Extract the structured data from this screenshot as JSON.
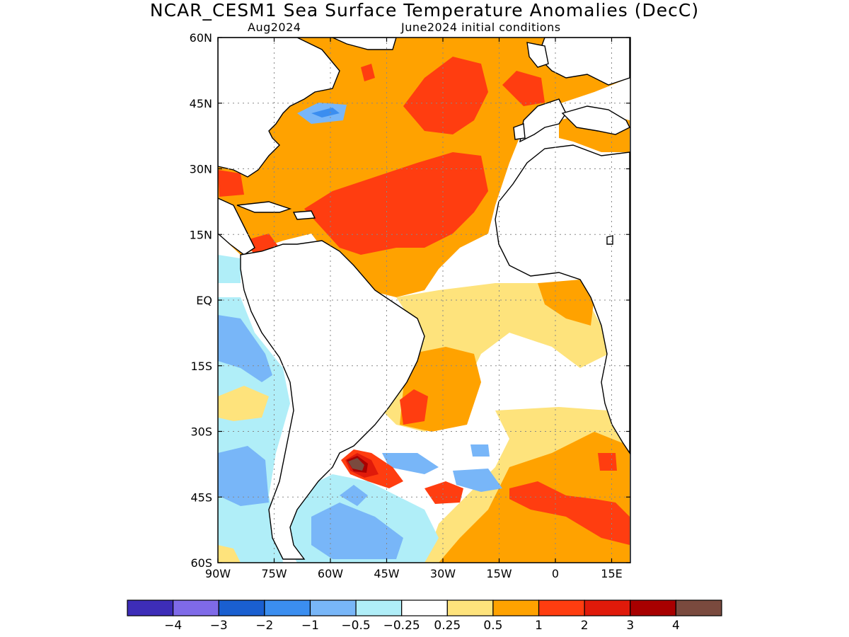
{
  "title": "NCAR_CESM1 Sea Surface Temperature Anomalies (DecC)",
  "subtitle_left": "Aug2024",
  "subtitle_right": "June2024 initial conditions",
  "map": {
    "lon_range": [
      -90,
      20
    ],
    "lat_range": [
      -60,
      60
    ],
    "lat_ticks": [
      {
        "lat": 60,
        "label": "60N"
      },
      {
        "lat": 45,
        "label": "45N"
      },
      {
        "lat": 30,
        "label": "30N"
      },
      {
        "lat": 15,
        "label": "15N"
      },
      {
        "lat": 0,
        "label": "EQ"
      },
      {
        "lat": -15,
        "label": "15S"
      },
      {
        "lat": -30,
        "label": "30S"
      },
      {
        "lat": -45,
        "label": "45S"
      },
      {
        "lat": -60,
        "label": "60S"
      }
    ],
    "lon_ticks": [
      {
        "lon": -90,
        "label": "90W"
      },
      {
        "lon": -75,
        "label": "75W"
      },
      {
        "lon": -60,
        "label": "60W"
      },
      {
        "lon": -45,
        "label": "45W"
      },
      {
        "lon": -30,
        "label": "30W"
      },
      {
        "lon": -15,
        "label": "15W"
      },
      {
        "lon": 0,
        "label": "0"
      },
      {
        "lon": 15,
        "label": "15E"
      }
    ],
    "gridlines": "dotted"
  },
  "colorbar": {
    "colors": [
      "#3d2db8",
      "#7f6ae8",
      "#1a5fd0",
      "#3b8ef0",
      "#78b6f8",
      "#b0eef8",
      "#ffffff",
      "#fee37c",
      "#ffa200",
      "#ff3d10",
      "#e01a0a",
      "#a80000",
      "#7a4a3e"
    ],
    "labels": [
      "−4",
      "−3",
      "−2",
      "−1",
      "−0.5",
      "−0.25",
      "0.25",
      "0.5",
      "1",
      "2",
      "3",
      "4"
    ]
  }
}
